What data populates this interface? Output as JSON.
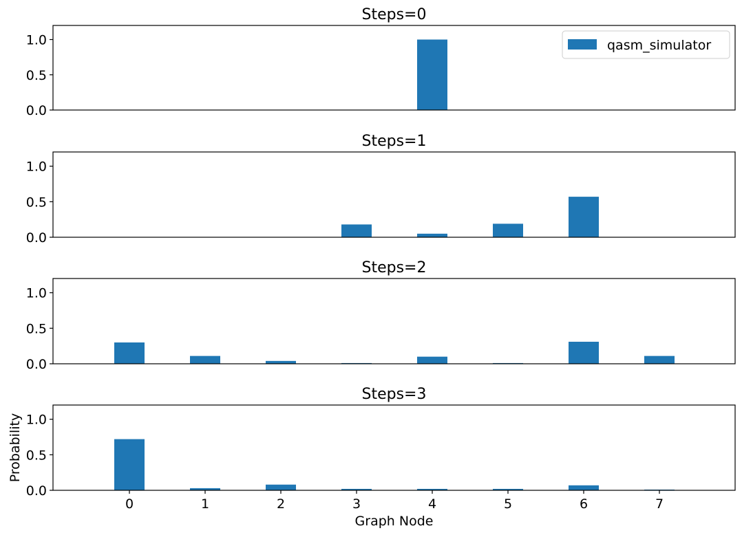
{
  "chart_data": [
    {
      "type": "bar",
      "title": "Steps=0",
      "categories": [
        "0",
        "1",
        "2",
        "3",
        "4",
        "5",
        "6",
        "7"
      ],
      "series": [
        {
          "name": "qasm_simulator",
          "values": [
            0,
            0,
            0,
            0,
            1.0,
            0,
            0,
            0
          ]
        }
      ],
      "ylim": [
        0,
        1.2
      ],
      "yticks": [
        "0.0",
        "0.5",
        "1.0"
      ],
      "legend": "top-right",
      "show_xticks": false
    },
    {
      "type": "bar",
      "title": "Steps=1",
      "categories": [
        "0",
        "1",
        "2",
        "3",
        "4",
        "5",
        "6",
        "7"
      ],
      "series": [
        {
          "values": [
            0,
            0,
            0,
            0.18,
            0.05,
            0.19,
            0.57,
            0
          ]
        }
      ],
      "ylim": [
        0,
        1.2
      ],
      "yticks": [
        "0.0",
        "0.5",
        "1.0"
      ],
      "show_xticks": false
    },
    {
      "type": "bar",
      "title": "Steps=2",
      "categories": [
        "0",
        "1",
        "2",
        "3",
        "4",
        "5",
        "6",
        "7"
      ],
      "series": [
        {
          "values": [
            0.3,
            0.11,
            0.04,
            0.01,
            0.1,
            0.01,
            0.31,
            0.11
          ]
        }
      ],
      "ylim": [
        0,
        1.2
      ],
      "yticks": [
        "0.0",
        "0.5",
        "1.0"
      ],
      "show_xticks": false
    },
    {
      "type": "bar",
      "title": "Steps=3",
      "categories": [
        "0",
        "1",
        "2",
        "3",
        "4",
        "5",
        "6",
        "7"
      ],
      "series": [
        {
          "values": [
            0.72,
            0.03,
            0.08,
            0.02,
            0.02,
            0.02,
            0.07,
            0.01
          ]
        }
      ],
      "ylim": [
        0,
        1.2
      ],
      "yticks": [
        "0.0",
        "0.5",
        "1.0"
      ],
      "xlabel": "Graph Node",
      "ylabel": "Probability",
      "show_xticks": true
    }
  ],
  "colors": {
    "bar": "#1f77b4"
  }
}
